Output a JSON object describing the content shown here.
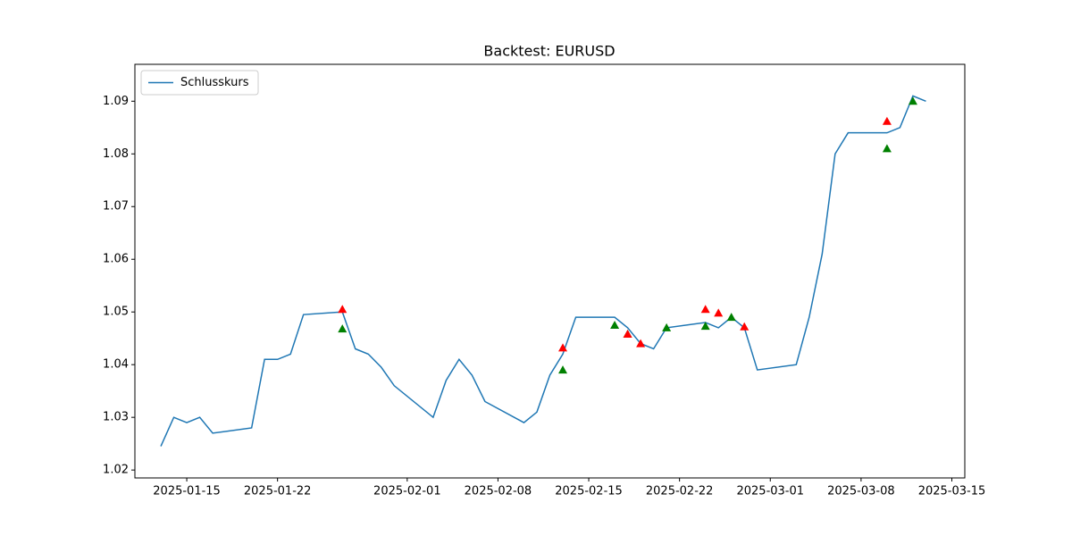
{
  "chart_data": {
    "type": "line",
    "title": "Backtest: EURUSD",
    "x": [
      "2025-01-13",
      "2025-01-14",
      "2025-01-15",
      "2025-01-16",
      "2025-01-17",
      "2025-01-20",
      "2025-01-21",
      "2025-01-22",
      "2025-01-23",
      "2025-01-24",
      "2025-01-27",
      "2025-01-28",
      "2025-01-29",
      "2025-01-30",
      "2025-01-31",
      "2025-02-03",
      "2025-02-04",
      "2025-02-05",
      "2025-02-06",
      "2025-02-07",
      "2025-02-10",
      "2025-02-11",
      "2025-02-12",
      "2025-02-13",
      "2025-02-14",
      "2025-02-17",
      "2025-02-18",
      "2025-02-19",
      "2025-02-20",
      "2025-02-21",
      "2025-02-24",
      "2025-02-25",
      "2025-02-26",
      "2025-02-27",
      "2025-02-28",
      "2025-03-03",
      "2025-03-04",
      "2025-03-05",
      "2025-03-06",
      "2025-03-07",
      "2025-03-10",
      "2025-03-11",
      "2025-03-12",
      "2025-03-13"
    ],
    "series": [
      {
        "name": "Schlusskurs",
        "color": "#1f77b4",
        "values": [
          1.0245,
          1.03,
          1.029,
          1.03,
          1.027,
          1.028,
          1.041,
          1.041,
          1.042,
          1.0495,
          1.05,
          1.043,
          1.042,
          1.0395,
          1.036,
          1.03,
          1.037,
          1.041,
          1.038,
          1.033,
          1.029,
          1.031,
          1.038,
          1.042,
          1.049,
          1.049,
          1.047,
          1.044,
          1.043,
          1.047,
          1.048,
          1.047,
          1.049,
          1.047,
          1.039,
          1.04,
          1.049,
          1.061,
          1.08,
          1.084,
          1.084,
          1.085,
          1.091,
          1.09
        ]
      }
    ],
    "markers": [
      {
        "marker": "^",
        "color": "green",
        "x": [
          "2025-01-27",
          "2025-02-13",
          "2025-02-17",
          "2025-02-18",
          "2025-02-21",
          "2025-02-24",
          "2025-02-26",
          "2025-03-10",
          "2025-03-12"
        ],
        "y": [
          1.0468,
          1.039,
          1.0475,
          1.0458,
          1.047,
          1.0473,
          1.049,
          1.081,
          1.09
        ]
      },
      {
        "marker": "^",
        "color": "red",
        "x": [
          "2025-01-27",
          "2025-02-13",
          "2025-02-18",
          "2025-02-19",
          "2025-02-24",
          "2025-02-25",
          "2025-02-27",
          "2025-03-10"
        ],
        "y": [
          1.0505,
          1.0432,
          1.0458,
          1.044,
          1.0505,
          1.0498,
          1.0472,
          1.0862
        ]
      }
    ],
    "xlim": [
      "2025-01-11",
      "2025-03-16"
    ],
    "xticks": [
      "2025-01-15",
      "2025-01-22",
      "2025-02-01",
      "2025-02-08",
      "2025-02-15",
      "2025-02-22",
      "2025-03-01",
      "2025-03-08",
      "2025-03-15"
    ],
    "ylim": [
      1.0185,
      1.097
    ],
    "yticks": [
      1.02,
      1.03,
      1.04,
      1.05,
      1.06,
      1.07,
      1.08,
      1.09
    ],
    "legend": "upper left"
  }
}
